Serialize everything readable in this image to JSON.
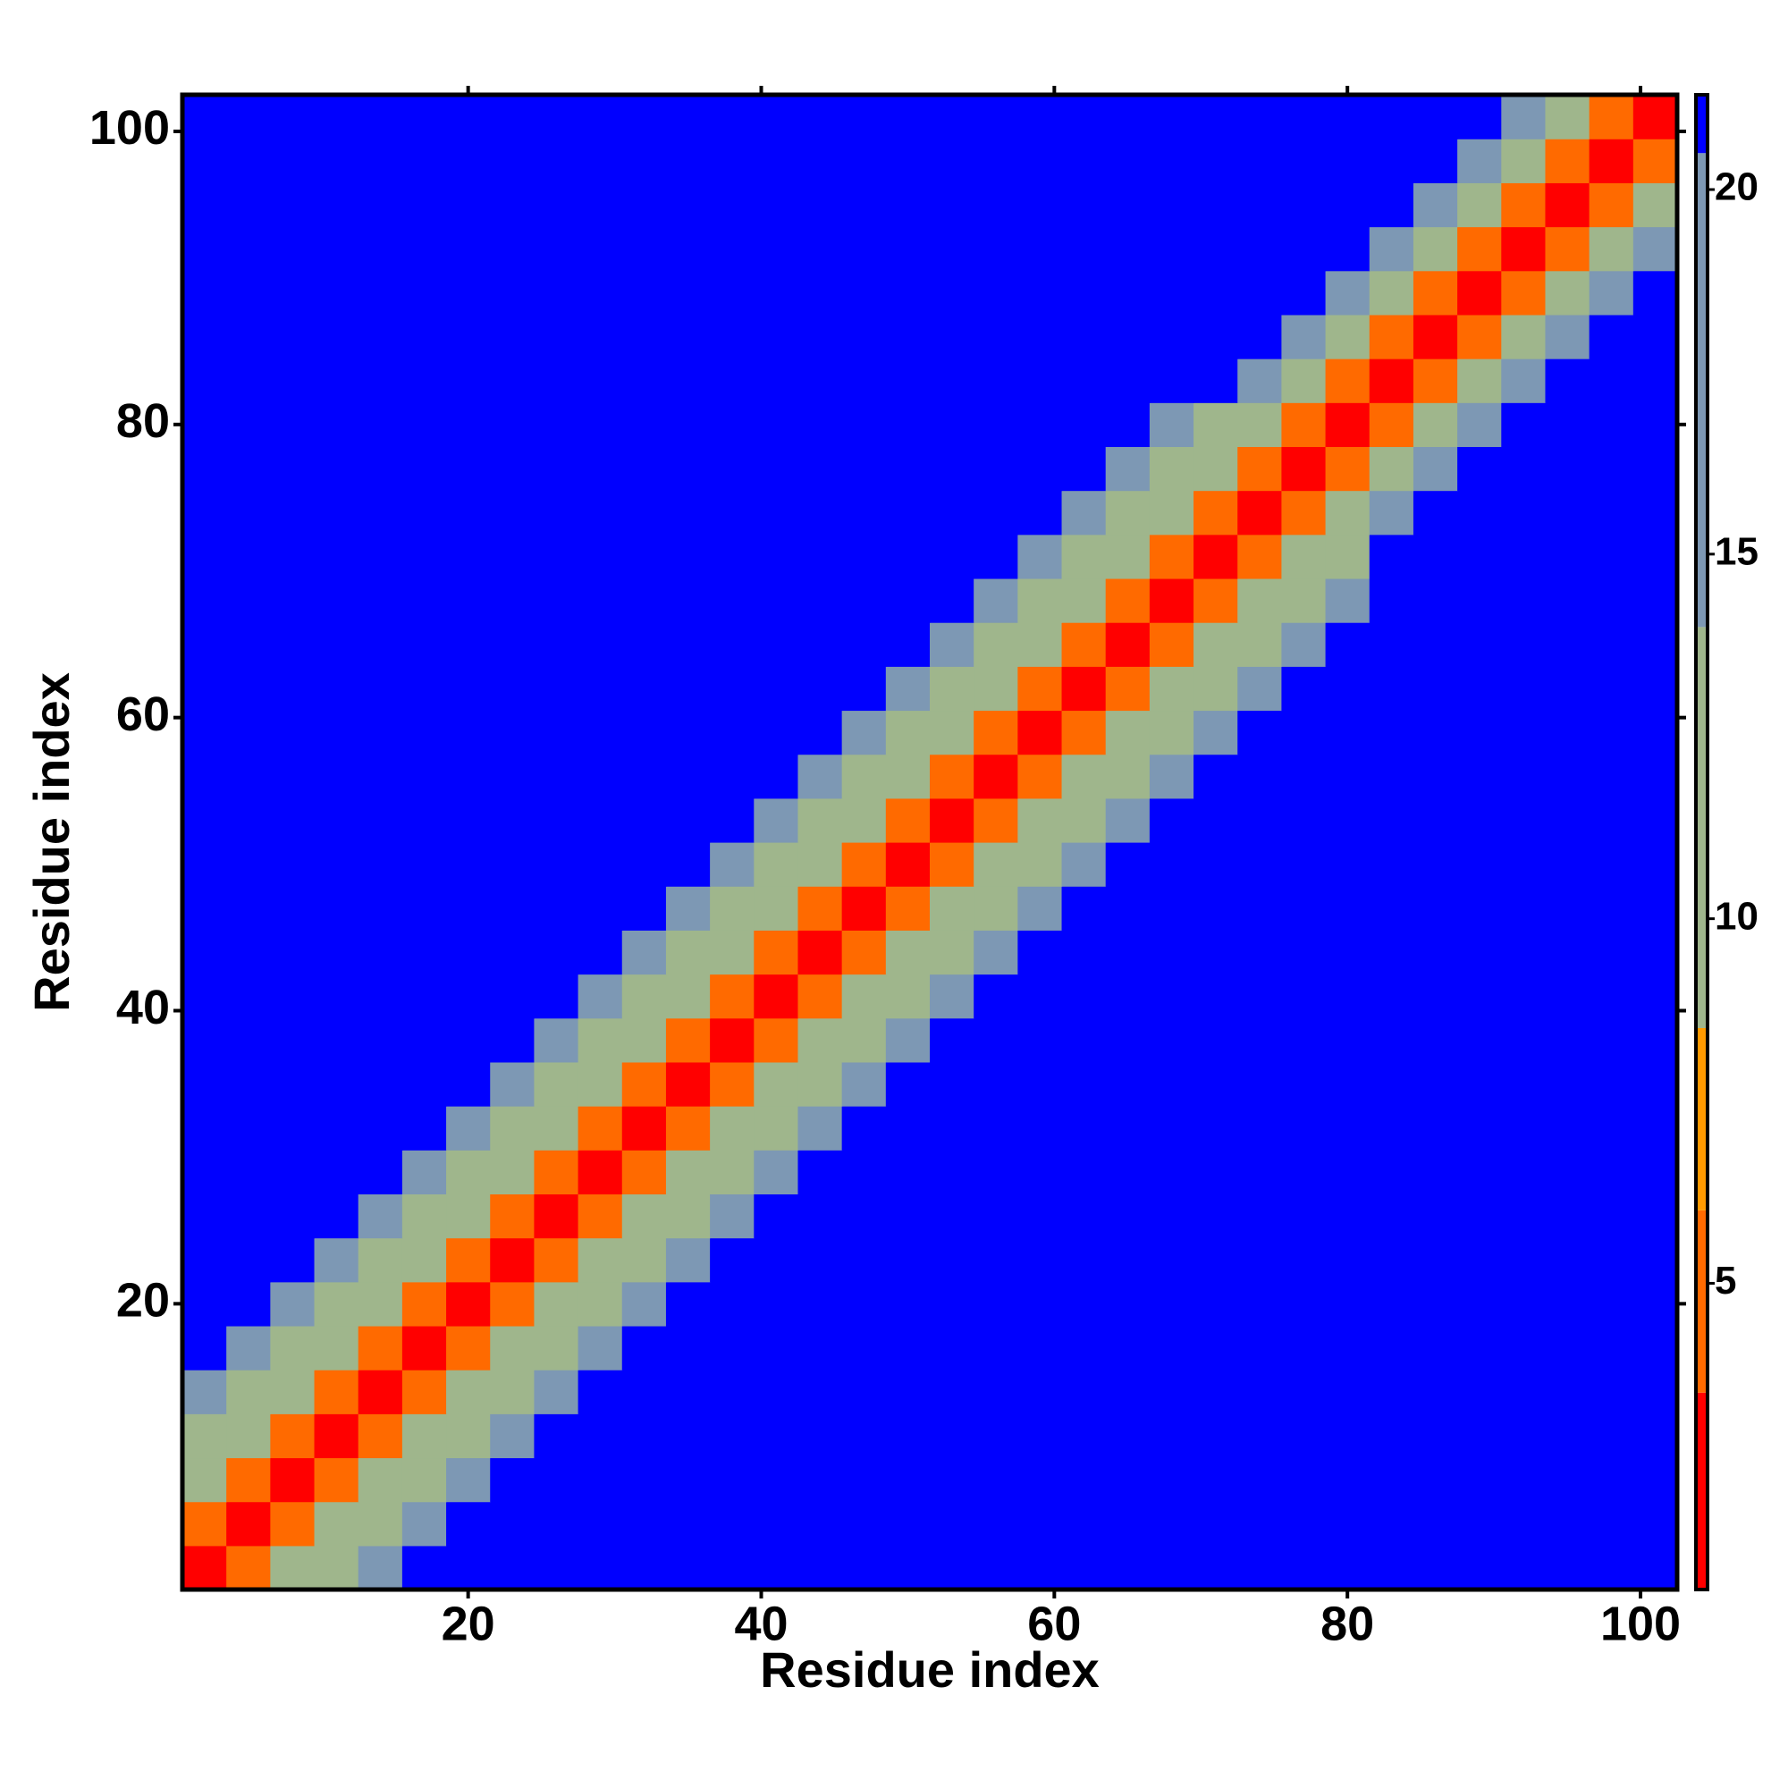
{
  "chart_data": {
    "type": "heatmap",
    "xlabel": "Residue index",
    "ylabel": "Residue index",
    "x": [
      2,
      5,
      8,
      11,
      14,
      17,
      20,
      23,
      26,
      29,
      32,
      35,
      38,
      41,
      44,
      47,
      50,
      53,
      56,
      59,
      62,
      65,
      68,
      71,
      74,
      77,
      80,
      83,
      86,
      89,
      92,
      95,
      98,
      101
    ],
    "y": [
      2,
      5,
      8,
      11,
      14,
      17,
      20,
      23,
      26,
      29,
      32,
      35,
      38,
      41,
      44,
      47,
      50,
      53,
      56,
      59,
      62,
      65,
      68,
      71,
      74,
      77,
      80,
      83,
      86,
      89,
      92,
      95,
      98,
      101
    ],
    "xlim": [
      0.5,
      102.5
    ],
    "ylim": [
      0.5,
      102.5
    ],
    "xticks": [
      20,
      40,
      60,
      80,
      100
    ],
    "yticks": [
      20,
      40,
      60,
      80,
      100
    ],
    "colorbar": {
      "lim": [
        0.8,
        21.3
      ],
      "ticks": [
        5,
        10,
        15,
        20
      ]
    },
    "colorscale": [
      {
        "max": 3.5,
        "color": "#ff0000"
      },
      {
        "max": 6,
        "color": "#ff6a00"
      },
      {
        "max": 8.5,
        "color": "#ff9a00"
      },
      {
        "max": 14,
        "color": "#9fb68c"
      },
      {
        "max": 20.5,
        "color": "#7d98b4"
      },
      {
        "max": 21.3,
        "color": "#0000ff"
      }
    ],
    "z": [
      [
        1,
        5,
        10,
        13,
        18,
        21,
        21,
        21,
        21,
        21,
        21,
        21,
        21,
        21,
        21,
        21,
        21,
        21,
        21,
        21,
        21,
        21,
        21,
        21,
        21,
        21,
        21,
        21,
        21,
        21,
        21,
        21,
        21,
        21
      ],
      [
        5,
        1,
        5,
        10,
        13,
        18,
        21,
        21,
        21,
        21,
        21,
        21,
        21,
        21,
        21,
        21,
        21,
        21,
        21,
        21,
        21,
        21,
        21,
        21,
        21,
        21,
        21,
        21,
        21,
        21,
        21,
        21,
        21,
        21
      ],
      [
        10,
        5,
        1,
        5,
        10,
        13,
        18,
        21,
        21,
        21,
        21,
        21,
        21,
        21,
        21,
        21,
        21,
        21,
        21,
        21,
        21,
        21,
        21,
        21,
        21,
        21,
        21,
        21,
        21,
        21,
        21,
        21,
        21,
        21
      ],
      [
        13,
        10,
        5,
        1,
        5,
        10,
        13,
        18,
        21,
        21,
        21,
        21,
        21,
        21,
        21,
        21,
        21,
        21,
        21,
        21,
        21,
        21,
        21,
        21,
        21,
        21,
        21,
        21,
        21,
        21,
        21,
        21,
        21,
        21
      ],
      [
        18,
        13,
        10,
        5,
        1,
        5,
        10,
        13,
        18,
        21,
        21,
        21,
        21,
        21,
        21,
        21,
        21,
        21,
        21,
        21,
        21,
        21,
        21,
        21,
        21,
        21,
        21,
        21,
        21,
        21,
        21,
        21,
        21,
        21
      ],
      [
        21,
        18,
        13,
        10,
        5,
        1,
        5,
        10,
        13,
        18,
        21,
        21,
        21,
        21,
        21,
        21,
        21,
        21,
        21,
        21,
        21,
        21,
        21,
        21,
        21,
        21,
        21,
        21,
        21,
        21,
        21,
        21,
        21,
        21
      ],
      [
        21,
        21,
        18,
        13,
        10,
        5,
        1,
        5,
        10,
        13,
        18,
        21,
        21,
        21,
        21,
        21,
        21,
        21,
        21,
        21,
        21,
        21,
        21,
        21,
        21,
        21,
        21,
        21,
        21,
        21,
        21,
        21,
        21,
        21
      ],
      [
        21,
        21,
        21,
        18,
        13,
        10,
        5,
        1,
        5,
        10,
        13,
        18,
        21,
        21,
        21,
        21,
        21,
        21,
        21,
        21,
        21,
        21,
        21,
        21,
        21,
        21,
        21,
        21,
        21,
        21,
        21,
        21,
        21,
        21
      ],
      [
        21,
        21,
        21,
        21,
        18,
        13,
        10,
        5,
        1,
        5,
        10,
        13,
        18,
        21,
        21,
        21,
        21,
        21,
        21,
        21,
        21,
        21,
        21,
        21,
        21,
        21,
        21,
        21,
        21,
        21,
        21,
        21,
        21,
        21
      ],
      [
        21,
        21,
        21,
        21,
        21,
        18,
        13,
        10,
        5,
        1,
        5,
        10,
        13,
        18,
        21,
        21,
        21,
        21,
        21,
        21,
        21,
        21,
        21,
        21,
        21,
        21,
        21,
        21,
        21,
        21,
        21,
        21,
        21,
        21
      ],
      [
        21,
        21,
        21,
        21,
        21,
        21,
        18,
        13,
        10,
        5,
        1,
        5,
        10,
        13,
        18,
        21,
        21,
        21,
        21,
        21,
        21,
        21,
        21,
        21,
        21,
        21,
        21,
        21,
        21,
        21,
        21,
        21,
        21,
        21
      ],
      [
        21,
        21,
        21,
        21,
        21,
        21,
        21,
        18,
        13,
        10,
        5,
        1,
        5,
        10,
        13,
        18,
        21,
        21,
        21,
        21,
        21,
        21,
        21,
        21,
        21,
        21,
        21,
        21,
        21,
        21,
        21,
        21,
        21,
        21
      ],
      [
        21,
        21,
        21,
        21,
        21,
        21,
        21,
        21,
        18,
        13,
        10,
        5,
        1,
        5,
        10,
        13,
        18,
        21,
        21,
        21,
        21,
        21,
        21,
        21,
        21,
        21,
        21,
        21,
        21,
        21,
        21,
        21,
        21,
        21
      ],
      [
        21,
        21,
        21,
        21,
        21,
        21,
        21,
        21,
        21,
        18,
        13,
        10,
        5,
        1,
        5,
        10,
        13,
        18,
        21,
        21,
        21,
        21,
        21,
        21,
        21,
        21,
        21,
        21,
        21,
        21,
        21,
        21,
        21,
        21
      ],
      [
        21,
        21,
        21,
        21,
        21,
        21,
        21,
        21,
        21,
        21,
        18,
        13,
        10,
        5,
        1,
        5,
        10,
        13,
        18,
        21,
        21,
        21,
        21,
        21,
        21,
        21,
        21,
        21,
        21,
        21,
        21,
        21,
        21,
        21
      ],
      [
        21,
        21,
        21,
        21,
        21,
        21,
        21,
        21,
        21,
        21,
        21,
        18,
        13,
        10,
        5,
        1,
        5,
        10,
        13,
        18,
        21,
        21,
        21,
        21,
        21,
        21,
        21,
        21,
        21,
        21,
        21,
        21,
        21,
        21
      ],
      [
        21,
        21,
        21,
        21,
        21,
        21,
        21,
        21,
        21,
        21,
        21,
        21,
        18,
        13,
        10,
        5,
        1,
        5,
        10,
        13,
        18,
        21,
        21,
        21,
        21,
        21,
        21,
        21,
        21,
        21,
        21,
        21,
        21,
        21
      ],
      [
        21,
        21,
        21,
        21,
        21,
        21,
        21,
        21,
        21,
        21,
        21,
        21,
        21,
        18,
        13,
        10,
        5,
        1,
        5,
        10,
        13,
        18,
        21,
        21,
        21,
        21,
        21,
        21,
        21,
        21,
        21,
        21,
        21,
        21
      ],
      [
        21,
        21,
        21,
        21,
        21,
        21,
        21,
        21,
        21,
        21,
        21,
        21,
        21,
        21,
        18,
        13,
        10,
        5,
        1,
        5,
        10,
        13,
        18,
        21,
        21,
        21,
        21,
        21,
        21,
        21,
        21,
        21,
        21,
        21
      ],
      [
        21,
        21,
        21,
        21,
        21,
        21,
        21,
        21,
        21,
        21,
        21,
        21,
        21,
        21,
        21,
        18,
        13,
        10,
        5,
        1,
        5,
        10,
        13,
        18,
        21,
        21,
        21,
        21,
        21,
        21,
        21,
        21,
        21,
        21
      ],
      [
        21,
        21,
        21,
        21,
        21,
        21,
        21,
        21,
        21,
        21,
        21,
        21,
        21,
        21,
        21,
        21,
        18,
        13,
        10,
        5,
        1,
        5,
        10,
        13,
        18,
        21,
        21,
        21,
        21,
        21,
        21,
        21,
        21,
        21
      ],
      [
        21,
        21,
        21,
        21,
        21,
        21,
        21,
        21,
        21,
        21,
        21,
        21,
        21,
        21,
        21,
        21,
        21,
        18,
        13,
        10,
        5,
        1,
        5,
        10,
        13,
        18,
        21,
        21,
        21,
        21,
        21,
        21,
        21,
        21
      ],
      [
        21,
        21,
        21,
        21,
        21,
        21,
        21,
        21,
        21,
        21,
        21,
        21,
        21,
        21,
        21,
        21,
        21,
        21,
        18,
        13,
        10,
        5,
        1,
        5,
        10,
        13,
        18,
        21,
        21,
        21,
        21,
        21,
        21,
        21
      ],
      [
        21,
        21,
        21,
        21,
        21,
        21,
        21,
        21,
        21,
        21,
        21,
        21,
        21,
        21,
        21,
        21,
        21,
        21,
        21,
        18,
        13,
        10,
        5,
        1,
        5,
        10,
        13,
        21,
        21,
        21,
        21,
        21,
        21,
        21
      ],
      [
        21,
        21,
        21,
        21,
        21,
        21,
        21,
        21,
        21,
        21,
        21,
        21,
        21,
        21,
        21,
        21,
        21,
        21,
        21,
        21,
        18,
        13,
        10,
        5,
        1,
        5,
        10,
        16,
        21,
        21,
        21,
        21,
        21,
        21
      ],
      [
        21,
        21,
        21,
        21,
        21,
        21,
        21,
        21,
        21,
        21,
        21,
        21,
        21,
        21,
        21,
        21,
        21,
        21,
        21,
        21,
        21,
        18,
        13,
        10,
        5,
        1,
        5,
        10,
        16,
        21,
        21,
        21,
        21,
        21
      ],
      [
        21,
        21,
        21,
        21,
        21,
        21,
        21,
        21,
        21,
        21,
        21,
        21,
        21,
        21,
        21,
        21,
        21,
        21,
        21,
        21,
        21,
        21,
        18,
        13,
        10,
        5,
        1,
        5,
        10,
        16,
        21,
        21,
        21,
        21
      ],
      [
        21,
        21,
        21,
        21,
        21,
        21,
        21,
        21,
        21,
        21,
        21,
        21,
        21,
        21,
        21,
        21,
        21,
        21,
        21,
        21,
        21,
        21,
        21,
        21,
        16,
        10,
        5,
        1,
        5,
        10,
        16,
        21,
        21,
        21
      ],
      [
        21,
        21,
        21,
        21,
        21,
        21,
        21,
        21,
        21,
        21,
        21,
        21,
        21,
        21,
        21,
        21,
        21,
        21,
        21,
        21,
        21,
        21,
        21,
        21,
        21,
        16,
        10,
        5,
        1,
        5,
        10,
        16,
        21,
        21
      ],
      [
        21,
        21,
        21,
        21,
        21,
        21,
        21,
        21,
        21,
        21,
        21,
        21,
        21,
        21,
        21,
        21,
        21,
        21,
        21,
        21,
        21,
        21,
        21,
        21,
        21,
        21,
        16,
        10,
        5,
        1,
        5,
        10,
        16,
        21
      ],
      [
        21,
        21,
        21,
        21,
        21,
        21,
        21,
        21,
        21,
        21,
        21,
        21,
        21,
        21,
        21,
        21,
        21,
        21,
        21,
        21,
        21,
        21,
        21,
        21,
        21,
        21,
        21,
        16,
        10,
        5,
        1,
        5,
        10,
        16
      ],
      [
        21,
        21,
        21,
        21,
        21,
        21,
        21,
        21,
        21,
        21,
        21,
        21,
        21,
        21,
        21,
        21,
        21,
        21,
        21,
        21,
        21,
        21,
        21,
        21,
        21,
        21,
        21,
        21,
        16,
        10,
        5,
        1,
        5,
        10
      ],
      [
        21,
        21,
        21,
        21,
        21,
        21,
        21,
        21,
        21,
        21,
        21,
        21,
        21,
        21,
        21,
        21,
        21,
        21,
        21,
        21,
        21,
        21,
        21,
        21,
        21,
        21,
        21,
        21,
        21,
        16,
        10,
        5,
        1,
        5
      ],
      [
        21,
        21,
        21,
        21,
        21,
        21,
        21,
        21,
        21,
        21,
        21,
        21,
        21,
        21,
        21,
        21,
        21,
        21,
        21,
        21,
        21,
        21,
        21,
        21,
        21,
        21,
        21,
        21,
        21,
        21,
        16,
        10,
        5,
        1
      ]
    ]
  }
}
